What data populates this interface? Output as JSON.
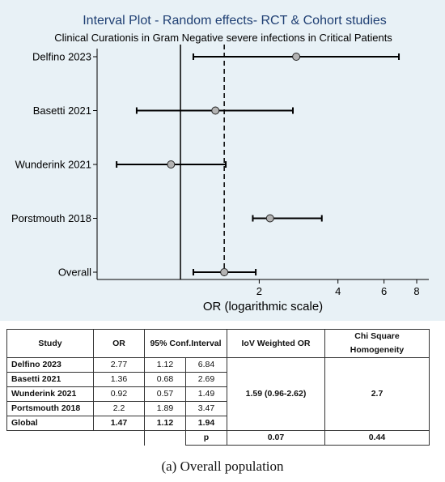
{
  "chart_data": {
    "type": "forest",
    "title": "Interval Plot - Random effects- RCT & Cohort studies",
    "subtitle": "Clinical Curationis in Gram Negative severe infections in Critical Patients",
    "xlabel": "OR (logarithmic scale)",
    "xscale": "log",
    "xlim": [
      0.48,
      8.9
    ],
    "xticks": [
      2,
      4,
      6,
      8
    ],
    "reference_line": 1,
    "pooled_line": 1.47,
    "studies": [
      {
        "label": "Delfino 2023",
        "or": 2.77,
        "ci_low": 1.12,
        "ci_high": 6.84
      },
      {
        "label": "Basetti 2021",
        "or": 1.36,
        "ci_low": 0.68,
        "ci_high": 2.69
      },
      {
        "label": "Wunderink 2021",
        "or": 0.92,
        "ci_low": 0.57,
        "ci_high": 1.49
      },
      {
        "label": "Porstmouth 2018",
        "or": 2.2,
        "ci_low": 1.89,
        "ci_high": 3.47
      },
      {
        "label": "Overall",
        "or": 1.47,
        "ci_low": 1.12,
        "ci_high": 1.94
      }
    ],
    "colors": {
      "panel": "#e8f1f6",
      "marker": "#b3b3b3",
      "line": "#000000"
    }
  },
  "table": {
    "headers": [
      "Study",
      "OR",
      "95% Conf.Interval",
      "IoV Weighted OR",
      "Chi Square Homogeneity"
    ],
    "rows": [
      {
        "study": "Delfino 2023",
        "or": "2.77",
        "ci_low": "1.12",
        "ci_high": "6.84"
      },
      {
        "study": "Basetti 2021",
        "or": "1.36",
        "ci_low": "0.68",
        "ci_high": "2.69"
      },
      {
        "study": "Wunderink 2021",
        "or": "0.92",
        "ci_low": "0.57",
        "ci_high": "1.49"
      },
      {
        "study": "Portsmouth 2018",
        "or": "2.2",
        "ci_low": "1.89",
        "ci_high": "3.47"
      }
    ],
    "global": {
      "study": "Global",
      "or": "1.47",
      "ci_low": "1.12",
      "ci_high": "1.94"
    },
    "weighted_or": "1.59 (0.96-2.62)",
    "chi_square": "2.7",
    "p_label": "p",
    "p_weighted": "0.07",
    "p_chi": "0.44"
  },
  "caption": "(a) Overall population"
}
